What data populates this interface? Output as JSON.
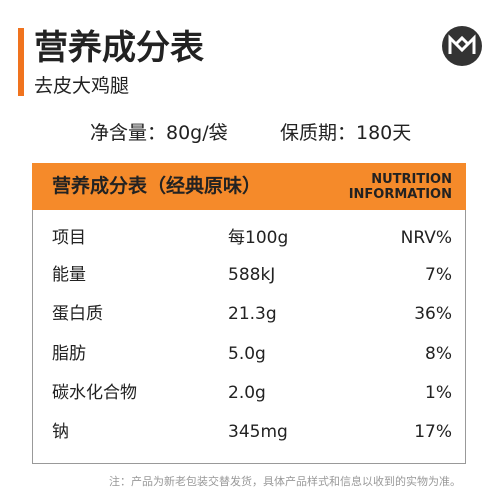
{
  "header": {
    "title": "营养成分表",
    "subtitle": "去皮大鸡腿"
  },
  "info": {
    "net_content": "净含量：80g/袋",
    "shelf_life": "保质期：180天"
  },
  "table": {
    "title": "营养成分表（经典原味）",
    "title_en": [
      "NUTRITION",
      "INFORMATION"
    ],
    "columns": [
      "项目",
      "每100g",
      "NRV%"
    ],
    "rows": [
      [
        "能量",
        "588kJ",
        "7%"
      ],
      [
        "蛋白质",
        "21.3g",
        "36%"
      ],
      [
        "脂肪",
        "5.0g",
        "8%"
      ],
      [
        "碳水化合物",
        "2.0g",
        "1%"
      ],
      [
        "钠",
        "345mg",
        "17%"
      ]
    ]
  },
  "note": "注：产品为新老包装交替发货，具体产品样式和信息以收到的实物为准。"
}
